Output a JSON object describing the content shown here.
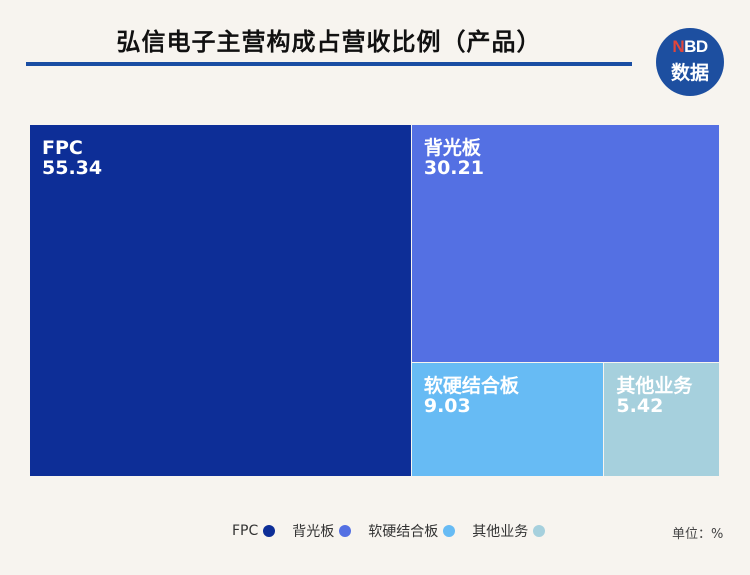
{
  "header": {
    "title": "弘信电子主营构成占营收比例（产品）",
    "logo_top_n": "N",
    "logo_top_rest": "BD",
    "logo_bottom": "数据"
  },
  "chart_data": {
    "type": "treemap",
    "title": "弘信电子主营构成占营收比例（产品）",
    "unit": "%",
    "items": [
      {
        "name": "FPC",
        "value": 55.34,
        "color": "#0d2e97"
      },
      {
        "name": "背光板",
        "value": 30.21,
        "color": "#5470e3"
      },
      {
        "name": "软硬结合板",
        "value": 9.03,
        "color": "#67bbf4"
      },
      {
        "name": "其他业务",
        "value": 5.42,
        "color": "#a6d0dd"
      }
    ]
  },
  "legend": {
    "items": [
      {
        "label": "FPC",
        "color": "#0d2e97"
      },
      {
        "label": "背光板",
        "color": "#5470e3"
      },
      {
        "label": "软硬结合板",
        "color": "#67bbf4"
      },
      {
        "label": "其他业务",
        "color": "#a6d0dd"
      }
    ]
  },
  "unit_label": "单位：%"
}
